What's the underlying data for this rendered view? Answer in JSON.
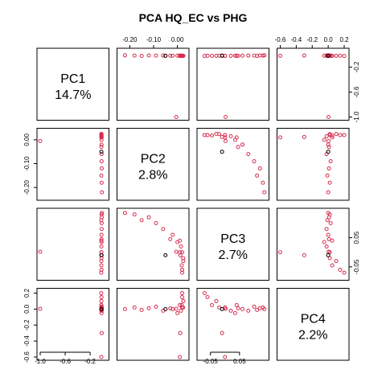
{
  "title": "PCA HQ_EC vs PHG",
  "colors": {
    "main": "#d62e4e",
    "highlight": "#000000"
  },
  "chart_data": {
    "type": "scatter",
    "grid": false,
    "variables": [
      {
        "name": "PC1",
        "variance": "14.7%",
        "range": [
          -1.0,
          0.05
        ],
        "ticks": [
          -1.0,
          -0.6,
          -0.2
        ],
        "tick_labels": [
          "-1.0",
          "-0.6",
          "-0.2"
        ]
      },
      {
        "name": "PC2",
        "variance": "2.8%",
        "range": [
          -0.24,
          0.035
        ],
        "ticks": [
          -0.2,
          -0.1,
          0.0
        ],
        "tick_labels": [
          "-0.20",
          "-0.10",
          "0.00"
        ]
      },
      {
        "name": "PC3",
        "variance": "2.7%",
        "range": [
          -0.085,
          0.14
        ],
        "ticks": [
          -0.05,
          0.05
        ],
        "tick_labels": [
          "-0.05",
          "0.05"
        ]
      },
      {
        "name": "PC4",
        "variance": "2.2%",
        "range": [
          -0.6,
          0.22
        ],
        "ticks": [
          -0.6,
          -0.4,
          -0.2,
          0.0,
          0.2
        ],
        "tick_labels": [
          "-0.6",
          "-0.4",
          "-0.2",
          "0.0",
          "0.2"
        ]
      }
    ],
    "axis_sides": {
      "top": [
        1,
        3
      ],
      "bottom": [
        0,
        2
      ],
      "left": [
        1,
        3
      ],
      "right": [
        0,
        2
      ]
    },
    "points": [
      [
        -1.0,
        -0.005,
        0.002,
        0.004,
        "main"
      ],
      [
        -0.02,
        0.01,
        0.04,
        0.05,
        "main"
      ],
      [
        -0.018,
        -0.02,
        0.06,
        0.0,
        "main"
      ],
      [
        -0.015,
        -0.06,
        0.08,
        -0.02,
        "main"
      ],
      [
        -0.014,
        -0.12,
        0.12,
        0.01,
        "main"
      ],
      [
        -0.016,
        -0.18,
        0.13,
        0.02,
        "main"
      ],
      [
        -0.012,
        -0.22,
        0.135,
        0.0,
        "main"
      ],
      [
        -0.02,
        0.02,
        0.0,
        0.02,
        "main"
      ],
      [
        -0.02,
        0.025,
        -0.03,
        0.1,
        "main"
      ],
      [
        -0.018,
        0.02,
        -0.06,
        0.15,
        "main"
      ],
      [
        -0.02,
        0.015,
        0.02,
        -0.02,
        "main"
      ],
      [
        -0.017,
        0.0,
        0.035,
        -0.05,
        "main"
      ],
      [
        -0.019,
        -0.03,
        0.045,
        0.01,
        "main"
      ],
      [
        -0.016,
        -0.09,
        0.1,
        0.03,
        "main"
      ],
      [
        -0.021,
        -0.15,
        0.11,
        -0.01,
        "main"
      ],
      [
        -0.02,
        0.018,
        -0.045,
        0.05,
        "main"
      ],
      [
        -0.015,
        0.012,
        -0.01,
        -0.3,
        "main"
      ],
      [
        -0.02,
        0.01,
        0.0,
        -0.6,
        "main"
      ],
      [
        -0.022,
        0.02,
        -0.07,
        0.2,
        "main"
      ],
      [
        -0.018,
        0.024,
        -0.02,
        0.02,
        "main"
      ],
      [
        -0.02,
        -0.05,
        -0.01,
        0.0,
        "highlight"
      ]
    ]
  }
}
